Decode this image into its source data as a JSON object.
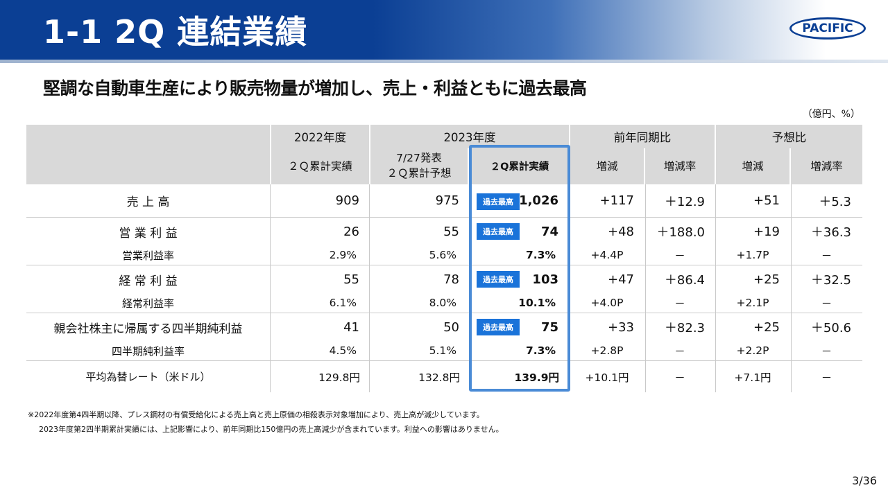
{
  "header": {
    "title": "1-1  2Q 連結業績",
    "logo_text": "PACIFIC"
  },
  "subtitle": "堅調な自動車生産により販売物量が増加し、売上・利益ともに過去最高",
  "unit": "（億円、%）",
  "table": {
    "group_headers": {
      "fy2022": "2022年度",
      "fy2023": "2023年度",
      "yoy": "前年同期比",
      "vs_forecast": "予想比"
    },
    "sub_headers": {
      "fy2022_actual": "２Ｑ累計実績",
      "forecast_line1": "7/27発表",
      "forecast_line2": "２Ｑ累計予想",
      "fy2023_actual": "２Q累計実績",
      "yoy_change": "増減",
      "yoy_rate": "増減率",
      "fc_change": "増減",
      "fc_rate": "増減率"
    },
    "badge_text": "過去最高",
    "rows": {
      "sales": {
        "label": "売 上 高",
        "fy2022": "909",
        "forecast": "975",
        "fy2023": "1,026",
        "yoy_change": "+117",
        "yoy_rate": "＋12.9",
        "fc_change": "+51",
        "fc_rate": "＋5.3"
      },
      "op_income": {
        "label": "営 業 利 益",
        "fy2022": "26",
        "forecast": "55",
        "fy2023": "74",
        "yoy_change": "+48",
        "yoy_rate": "＋188.0",
        "fc_change": "+19",
        "fc_rate": "＋36.3"
      },
      "op_margin": {
        "label": "営業利益率",
        "fy2022": "2.9%",
        "forecast": "5.6%",
        "fy2023": "7.3%",
        "yoy_change": "+4.4P",
        "yoy_rate": "－",
        "fc_change": "+1.7P",
        "fc_rate": "－"
      },
      "ord_income": {
        "label": "経 常 利 益",
        "fy2022": "55",
        "forecast": "78",
        "fy2023": "103",
        "yoy_change": "+47",
        "yoy_rate": "＋86.4",
        "fc_change": "+25",
        "fc_rate": "＋32.5"
      },
      "ord_margin": {
        "label": "経常利益率",
        "fy2022": "6.1%",
        "forecast": "8.0%",
        "fy2023": "10.1%",
        "yoy_change": "+4.0P",
        "yoy_rate": "－",
        "fc_change": "+2.1P",
        "fc_rate": "－"
      },
      "net_income": {
        "label": "親会社株主に帰属する四半期純利益",
        "fy2022": "41",
        "forecast": "50",
        "fy2023": "75",
        "yoy_change": "+33",
        "yoy_rate": "＋82.3",
        "fc_change": "+25",
        "fc_rate": "＋50.6"
      },
      "net_margin": {
        "label": "四半期純利益率",
        "fy2022": "4.5%",
        "forecast": "5.1%",
        "fy2023": "7.3%",
        "yoy_change": "+2.8P",
        "yoy_rate": "－",
        "fc_change": "+2.2P",
        "fc_rate": "－"
      },
      "fx_rate": {
        "label": "平均為替レート（米ドル）",
        "fy2022": "129.8円",
        "forecast": "132.8円",
        "fy2023": "139.9円",
        "yoy_change": "+10.1円",
        "yoy_rate": "－",
        "fc_change": "+7.1円",
        "fc_rate": "－"
      }
    }
  },
  "notes": {
    "line1": "※2022年度第4四半期以降、プレス鋼材の有償受給化による売上高と売上原価の相殺表示対象増加により、売上高が減少しています。",
    "line2": "2023年度第2四半期累計実績には、上記影響により、前年同期比150億円の売上高減少が含まれています。利益への影響はありません。"
  },
  "page_number": "3/36",
  "colors": {
    "brand_blue": "#0b3f94",
    "badge_blue": "#1a73d9",
    "highlight_border": "#4a8bd6",
    "header_gray": "#d9d9d9"
  }
}
